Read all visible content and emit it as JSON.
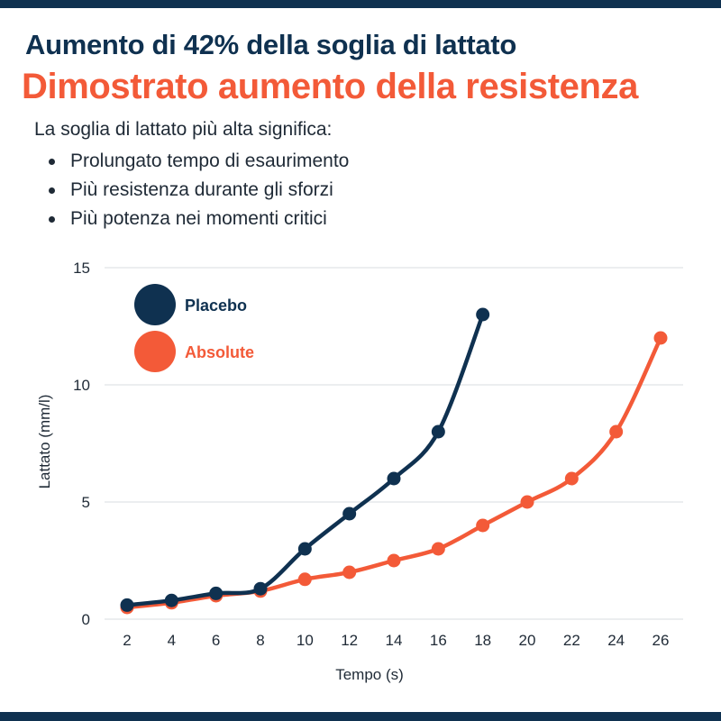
{
  "header": {
    "title": "Aumento di 42% della soglia di lattato",
    "subtitle": "Dimostrato aumento della resistenza"
  },
  "intro": "La soglia di lattato più alta significa:",
  "bullets": [
    "Prolungato tempo di esaurimento",
    "Più resistenza durante gli sforzi",
    "Più potenza nei momenti critici"
  ],
  "colors": {
    "navy": "#0f3150",
    "orange": "#f35a38",
    "grid": "#d9dde2",
    "text": "#1f2a36"
  },
  "chart_data": {
    "type": "line",
    "xlabel": "Tempo (s)",
    "ylabel": "Lattato (mm/l)",
    "xlim": [
      2,
      26
    ],
    "ylim": [
      0,
      15
    ],
    "x_ticks": [
      2,
      4,
      6,
      8,
      10,
      12,
      14,
      16,
      18,
      20,
      22,
      24,
      26
    ],
    "y_ticks": [
      0,
      5,
      10,
      15
    ],
    "grid": "horizontal",
    "legend": "top-left",
    "series": [
      {
        "name": "Placebo",
        "color": "#0f3150",
        "x": [
          2,
          4,
          6,
          8,
          10,
          12,
          14,
          16,
          18
        ],
        "y": [
          0.6,
          0.8,
          1.1,
          1.3,
          3.0,
          4.5,
          6.0,
          8.0,
          13.0
        ]
      },
      {
        "name": "Absolute",
        "color": "#f35a38",
        "x": [
          2,
          4,
          6,
          8,
          10,
          12,
          14,
          16,
          18,
          20,
          22,
          24,
          26
        ],
        "y": [
          0.5,
          0.7,
          1.0,
          1.2,
          1.7,
          2.0,
          2.5,
          3.0,
          4.0,
          5.0,
          6.0,
          8.0,
          12.0
        ]
      }
    ]
  }
}
